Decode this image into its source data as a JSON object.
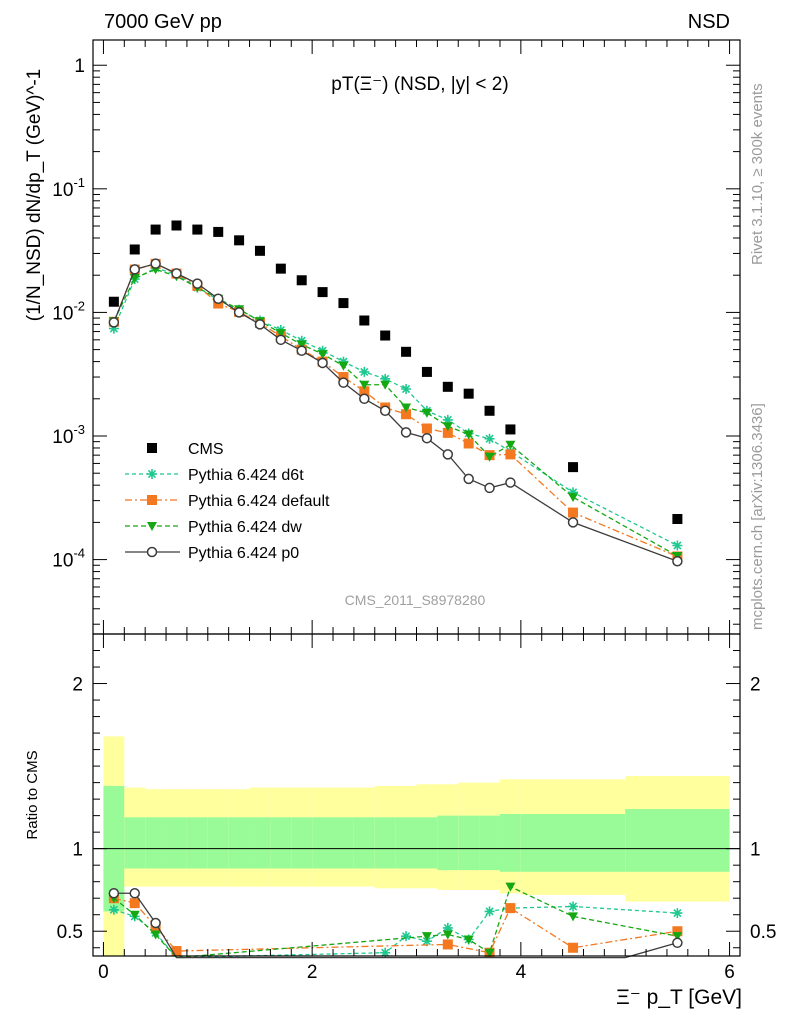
{
  "header": {
    "left": "7000 GeV pp",
    "right": "NSD"
  },
  "side_labels": {
    "rivet": "Rivet 3.1.10, ≥ 300k events",
    "mcplots": "mcplots.cern.ch [arXiv:1306.3436]"
  },
  "chart_data": [
    {
      "type": "scatter",
      "panel": "main",
      "title": "pT(Ξ⁻) (NSD, |y| < 2)",
      "ylabel": "(1/N_NSD) dN/dp_T (GeV)^-1",
      "xlabel": "Ξ⁻ p_T [GeV]",
      "yscale": "log",
      "xlim": [
        -0.1,
        6.1
      ],
      "ylim": [
        2.5e-05,
        1.6
      ],
      "y_tick_labels": [
        "10^-4",
        "10^-3",
        "10^-2",
        "10^-1",
        "1"
      ],
      "watermark": "CMS_2011_S8978280",
      "legend_position": "bottom-left",
      "x": [
        0.1,
        0.3,
        0.5,
        0.7,
        0.9,
        1.1,
        1.3,
        1.5,
        1.7,
        1.9,
        2.1,
        2.3,
        2.5,
        2.7,
        2.9,
        3.1,
        3.3,
        3.5,
        3.7,
        3.9,
        4.5,
        5.5
      ],
      "series": [
        {
          "name": "CMS",
          "color": "#000000",
          "marker": "square",
          "values": [
            0.0122,
            0.0323,
            0.0468,
            0.0505,
            0.0468,
            0.0448,
            0.0383,
            0.0315,
            0.0226,
            0.0182,
            0.0146,
            0.0119,
            0.0086,
            0.0065,
            0.0048,
            0.0033,
            0.0025,
            0.0022,
            0.0016,
            0.00113,
            0.00056,
            0.000213
          ]
        },
        {
          "name": "Pythia 6.424 d6t",
          "color": "#1fc890",
          "marker": "star",
          "dash": "4,3",
          "values": [
            0.0074,
            0.0186,
            0.0229,
            0.0203,
            0.0159,
            0.0126,
            0.0105,
            0.0086,
            0.0072,
            0.0059,
            0.0049,
            0.004,
            0.0033,
            0.0029,
            0.0024,
            0.0016,
            0.00135,
            0.00105,
            0.00095,
            0.00075,
            0.00035,
            0.00013
          ]
        },
        {
          "name": "Pythia 6.424 default",
          "color": "#f47820",
          "marker": "square",
          "dash": "7,3,2,3",
          "values": [
            0.0084,
            0.0222,
            0.0247,
            0.0206,
            0.0164,
            0.0118,
            0.0101,
            0.0082,
            0.0064,
            0.005,
            0.004,
            0.003,
            0.0023,
            0.0017,
            0.0015,
            0.00115,
            0.00106,
            0.00087,
            0.0007,
            0.00071,
            0.00024,
            0.000106
          ]
        },
        {
          "name": "Pythia 6.424 dw",
          "color": "#16a812",
          "marker": "triangle-down",
          "dash": "5,3",
          "values": [
            0.0085,
            0.019,
            0.0223,
            0.0196,
            0.0159,
            0.0129,
            0.0106,
            0.0085,
            0.0068,
            0.0055,
            0.0046,
            0.0037,
            0.0026,
            0.0026,
            0.0017,
            0.00154,
            0.0012,
            0.00103,
            0.00068,
            0.00085,
            0.00032,
            0.000107
          ]
        },
        {
          "name": "Pythia 6.424 p0",
          "color": "#3c3c3c",
          "marker": "circle-open",
          "dash": "",
          "values": [
            0.0083,
            0.0223,
            0.0248,
            0.0207,
            0.0171,
            0.0129,
            0.01,
            0.008,
            0.006,
            0.0049,
            0.0039,
            0.0027,
            0.002,
            0.0016,
            0.00107,
            0.00096,
            0.00071,
            0.00045,
            0.00038,
            0.00042,
            0.0002,
            9.7e-05
          ]
        }
      ]
    },
    {
      "type": "scatter",
      "panel": "ratio",
      "ylabel": "Ratio to CMS",
      "xlabel": "Ξ⁻ p_T [GeV]",
      "xlim": [
        -0.1,
        6.1
      ],
      "ylim": [
        0.35,
        2.3
      ],
      "x_ticks": [
        0,
        2,
        4,
        6
      ],
      "y_ticks": [
        0.5,
        1,
        2
      ],
      "bands": {
        "edges": [
          0,
          0.2,
          0.4,
          0.6,
          0.8,
          1.0,
          1.2,
          1.4,
          1.6,
          1.8,
          2.0,
          2.2,
          2.4,
          2.6,
          2.8,
          3.0,
          3.2,
          3.4,
          3.6,
          3.8,
          4.0,
          5.0,
          6.0
        ],
        "stat_lo": [
          0.62,
          0.88,
          0.88,
          0.88,
          0.88,
          0.88,
          0.88,
          0.88,
          0.88,
          0.88,
          0.88,
          0.88,
          0.88,
          0.88,
          0.88,
          0.88,
          0.87,
          0.87,
          0.87,
          0.86,
          0.86,
          0.86
        ],
        "stat_hi": [
          1.38,
          1.19,
          1.19,
          1.19,
          1.19,
          1.19,
          1.19,
          1.19,
          1.19,
          1.19,
          1.19,
          1.19,
          1.19,
          1.19,
          1.19,
          1.19,
          1.2,
          1.2,
          1.2,
          1.21,
          1.21,
          1.24
        ],
        "total_lo": [
          0.0,
          0.77,
          0.77,
          0.77,
          0.77,
          0.77,
          0.77,
          0.77,
          0.77,
          0.77,
          0.77,
          0.77,
          0.77,
          0.76,
          0.76,
          0.76,
          0.75,
          0.75,
          0.75,
          0.73,
          0.72,
          0.68
        ],
        "total_hi": [
          1.68,
          1.37,
          1.36,
          1.36,
          1.36,
          1.36,
          1.36,
          1.37,
          1.37,
          1.37,
          1.37,
          1.37,
          1.37,
          1.38,
          1.38,
          1.39,
          1.39,
          1.4,
          1.4,
          1.42,
          1.42,
          1.44
        ]
      },
      "series": [
        {
          "name": "Pythia 6.424 d6t",
          "color": "#1fc890",
          "x": [
            0.1,
            0.3,
            0.5,
            0.7,
            2.7,
            2.9,
            3.1,
            3.3,
            3.5,
            3.7,
            3.9,
            4.5,
            5.5
          ],
          "values": [
            0.63,
            0.59,
            0.49,
            0.34,
            0.37,
            0.47,
            0.44,
            0.52,
            0.45,
            0.62,
            0.64,
            0.65,
            0.61
          ]
        },
        {
          "name": "Pythia 6.424 default",
          "color": "#f47820",
          "x": [
            0.1,
            0.3,
            0.5,
            0.7,
            3.3,
            3.7,
            3.9,
            4.5,
            5.5
          ],
          "values": [
            0.7,
            0.67,
            0.53,
            0.38,
            0.42,
            0.37,
            0.64,
            0.4,
            0.5
          ]
        },
        {
          "name": "Pythia 6.424 dw",
          "color": "#16a812",
          "x": [
            0.1,
            0.3,
            0.5,
            0.7,
            3.1,
            3.3,
            3.5,
            3.7,
            3.9,
            4.5,
            5.5
          ],
          "values": [
            0.7,
            0.6,
            0.48,
            0.34,
            0.47,
            0.48,
            0.45,
            0.37,
            0.77,
            0.59,
            0.47
          ]
        },
        {
          "name": "Pythia 6.424 p0",
          "color": "#3c3c3c",
          "x": [
            0.1,
            0.3,
            0.5,
            0.7,
            5.0,
            5.5
          ],
          "values": [
            0.73,
            0.73,
            0.55,
            0.34,
            0.34,
            0.43
          ]
        }
      ]
    }
  ]
}
